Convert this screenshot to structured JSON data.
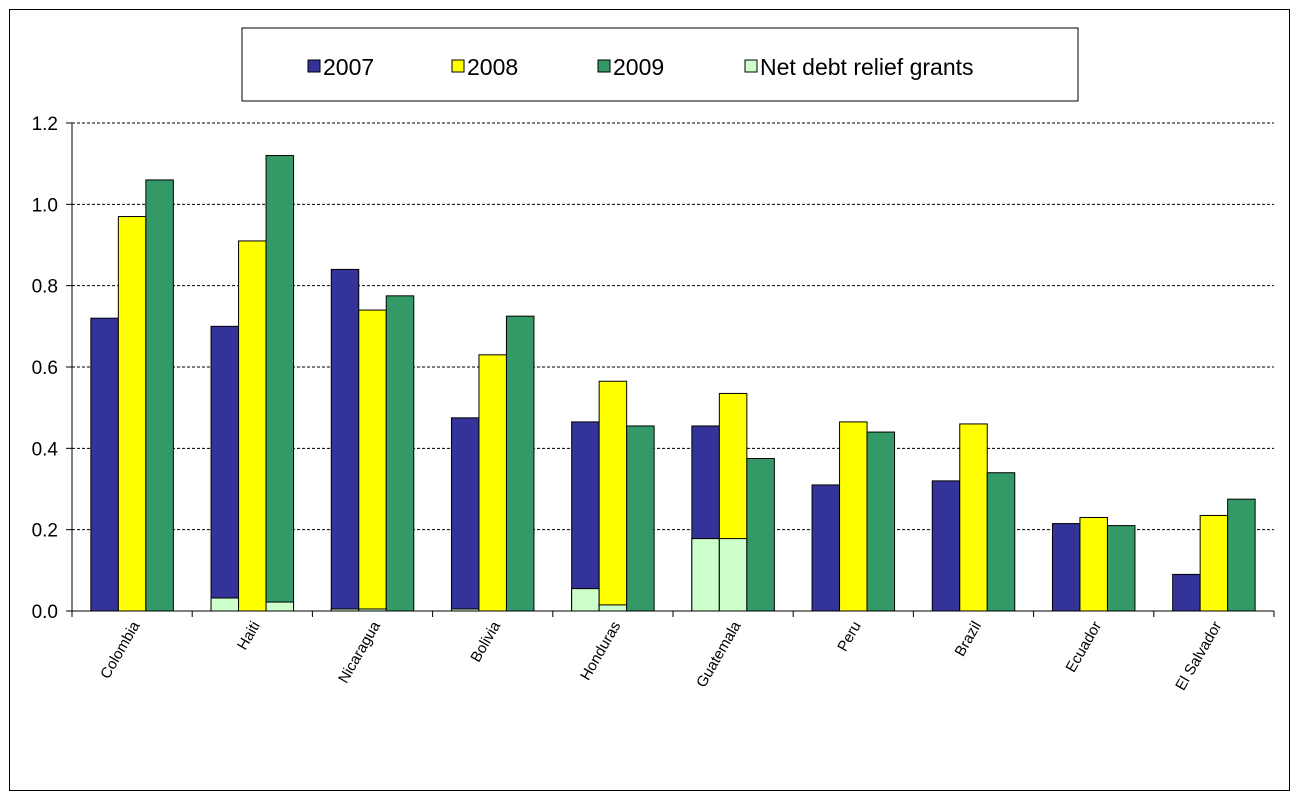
{
  "chart_data": {
    "type": "bar",
    "title": "",
    "xlabel": "",
    "ylabel": "",
    "ylim": [
      0,
      1.2
    ],
    "yticks": [
      "0.0",
      "0.2",
      "0.4",
      "0.6",
      "0.8",
      "1.0",
      "1.2"
    ],
    "grid": "horizontal dashed",
    "legend_position": "top-center",
    "categories": [
      "Colombia",
      "Haiti",
      "Nicaragua",
      "Bolivia",
      "Honduras",
      "Guatemala",
      "Peru",
      "Brazil",
      "Ecuador",
      "El Salvador"
    ],
    "series": [
      {
        "name": "2007",
        "color": "#333399",
        "values": [
          0.72,
          0.7,
          0.84,
          0.475,
          0.465,
          0.455,
          0.31,
          0.32,
          0.215,
          0.09
        ]
      },
      {
        "name": "2008",
        "color": "#ffff00",
        "values": [
          0.97,
          0.91,
          0.74,
          0.63,
          0.565,
          0.535,
          0.465,
          0.46,
          0.23,
          0.235
        ]
      },
      {
        "name": "2009",
        "color": "#339966",
        "values": [
          1.06,
          1.12,
          0.775,
          0.725,
          0.455,
          0.375,
          0.44,
          0.34,
          0.21,
          0.275
        ]
      }
    ],
    "overlay_series": {
      "name": "Net debt relief grants",
      "color": "#ccffcc",
      "values_by_year": {
        "2007": [
          0.0,
          0.032,
          0.005,
          0.005,
          0.055,
          0.178,
          0.0,
          0.0,
          0.0,
          0.0
        ],
        "2008": [
          0.0,
          0.0,
          0.005,
          0.0,
          0.015,
          0.178,
          0.0,
          0.0,
          0.0,
          0.0
        ],
        "2009": [
          0.0,
          0.022,
          0.0,
          0.0,
          0.0,
          0.0,
          0.0,
          0.0,
          0.0,
          0.0
        ]
      }
    }
  }
}
